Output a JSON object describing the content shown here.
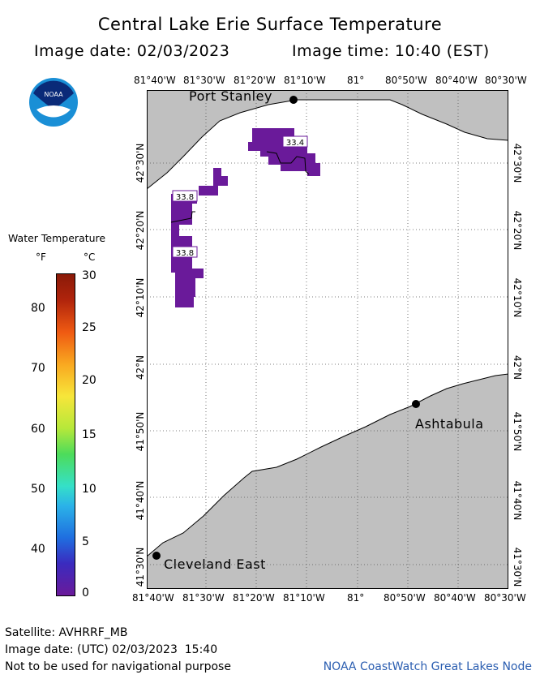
{
  "title": "Central Lake Erie Surface Temperature",
  "image_date_label": "Image date: 02/03/2023",
  "image_time_label": "Image time: 10:40 (EST)",
  "logo_text": "NOAA",
  "longitude_ticks": [
    "81°40'W",
    "81°30'W",
    "81°20'W",
    "81°10'W",
    "81°",
    "80°50'W",
    "80°40'W",
    "80°30'W"
  ],
  "latitude_ticks": [
    "42°30'N",
    "42°20'N",
    "42°10'N",
    "42°N",
    "41°50'N",
    "41°40'N",
    "41°30'N"
  ],
  "places": {
    "port_stanley": "Port Stanley",
    "ashtabula": "Ashtabula",
    "cleveland_east": "Cleveland East"
  },
  "temperature_labels": [
    "33.4",
    "33.8",
    "33.8"
  ],
  "legend": {
    "title": "Water Temperature",
    "unit_f": "°F",
    "unit_c": "°C",
    "f_ticks": [
      "80",
      "70",
      "60",
      "50",
      "40"
    ],
    "c_ticks": [
      "30",
      "25",
      "20",
      "15",
      "10",
      "5",
      "0"
    ],
    "colors": [
      "#6a1a9a",
      "#3a2bbf",
      "#1f6fe0",
      "#2bb3e8",
      "#35e0c8",
      "#4ddc5a",
      "#b6e83a",
      "#f7e63a",
      "#f9a820",
      "#ef5a12",
      "#b0240c",
      "#8a1a08"
    ]
  },
  "map_colors": {
    "land": "#c0c0c0",
    "water": "#ffffff",
    "ice_cold": "#6a1a9a"
  },
  "footer": {
    "satellite": "Satellite: AVHRRF_MB",
    "utc_date": "Image date: (UTC) 02/03/2023  15:40",
    "disclaimer": "Not to be used for navigational purpose",
    "credit": "NOAA CoastWatch Great Lakes Node"
  }
}
